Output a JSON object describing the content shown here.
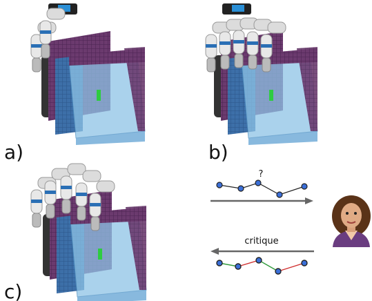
{
  "panels": {
    "a": {
      "label": "a)"
    },
    "b": {
      "label": "b)"
    },
    "c": {
      "label": "c)"
    }
  },
  "query": {
    "mark": "?"
  },
  "feedback": {
    "label": "critique"
  }
}
